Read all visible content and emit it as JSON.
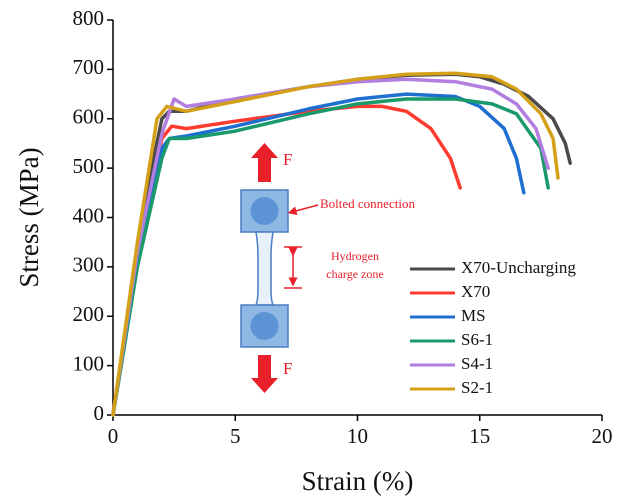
{
  "chart_data": {
    "type": "line",
    "x_label": "Strain (%)",
    "y_label": "Stress (MPa)",
    "xlim": [
      0,
      20
    ],
    "xticks": [
      0,
      5,
      10,
      15,
      20
    ],
    "ylim": [
      0,
      800
    ],
    "yticks": [
      0,
      100,
      200,
      300,
      400,
      500,
      600,
      700,
      800
    ],
    "grid": false,
    "legend": "lower right",
    "annotations": [
      "F",
      "Bolted connection",
      "Hydrogen",
      "charge zone",
      "F"
    ],
    "series": [
      {
        "name": "X70-Uncharging",
        "color": "#4a4a4a",
        "x": [
          0,
          0.5,
          1,
          1.5,
          2,
          2.3,
          3,
          5,
          8,
          10,
          12,
          14,
          15,
          16,
          17,
          18,
          18.5,
          18.7
        ],
        "values": [
          0,
          150,
          320,
          480,
          600,
          615,
          615,
          640,
          665,
          680,
          688,
          690,
          685,
          670,
          645,
          600,
          550,
          510
        ]
      },
      {
        "name": "X70",
        "color": "#ff3b30",
        "x": [
          0,
          1,
          2,
          2.4,
          3,
          5,
          8,
          10,
          11,
          12,
          13,
          13.8,
          14.2
        ],
        "values": [
          0,
          330,
          560,
          585,
          580,
          595,
          615,
          625,
          625,
          615,
          580,
          520,
          460
        ]
      },
      {
        "name": "MS",
        "color": "#1f6fd1",
        "x": [
          0,
          1,
          2,
          2.3,
          3,
          5,
          8,
          10,
          12,
          14,
          15,
          16,
          16.5,
          16.8
        ],
        "values": [
          0,
          320,
          540,
          560,
          565,
          585,
          620,
          640,
          650,
          645,
          625,
          580,
          520,
          450
        ]
      },
      {
        "name": "S6-1",
        "color": "#1a9a6a",
        "x": [
          0,
          1,
          2,
          2.3,
          3,
          5,
          8,
          10,
          12,
          14,
          15.5,
          16.5,
          17.5,
          17.8
        ],
        "values": [
          0,
          300,
          520,
          560,
          560,
          575,
          610,
          630,
          640,
          640,
          630,
          610,
          540,
          460
        ]
      },
      {
        "name": "S4-1",
        "color": "#b27ee0",
        "x": [
          0,
          1,
          2,
          2.5,
          3,
          5,
          8,
          10,
          12,
          14,
          15.5,
          16.5,
          17.3,
          17.8
        ],
        "values": [
          0,
          330,
          570,
          640,
          625,
          640,
          665,
          675,
          680,
          675,
          660,
          630,
          580,
          500
        ]
      },
      {
        "name": "S2-1",
        "color": "#d4a017",
        "x": [
          0,
          1,
          1.8,
          2.2,
          3,
          5,
          8,
          10,
          12,
          14,
          15.5,
          16.5,
          17.5,
          18,
          18.2
        ],
        "values": [
          0,
          350,
          600,
          625,
          615,
          635,
          665,
          680,
          690,
          692,
          685,
          660,
          610,
          560,
          480
        ]
      }
    ]
  }
}
